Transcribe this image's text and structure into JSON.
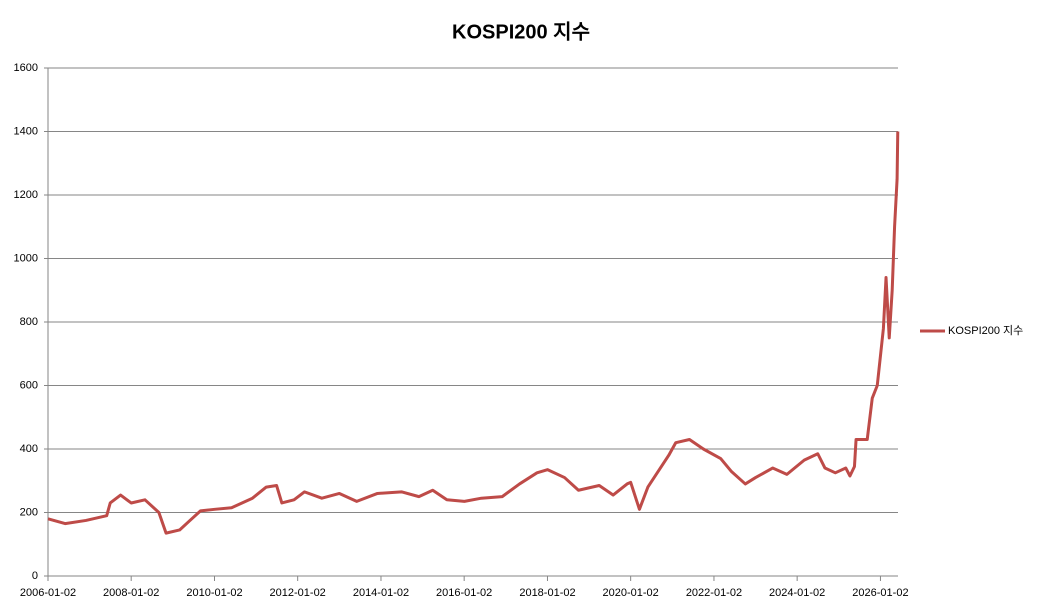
{
  "chart_data": {
    "type": "line",
    "title": "KOSPI200 지수",
    "x": [
      "2006-01-02",
      "2006-06-01",
      "2006-12-01",
      "2007-06-01",
      "2007-07-02",
      "2007-10-01",
      "2008-01-02",
      "2008-05-02",
      "2008-09-01",
      "2008-11-03",
      "2009-03-02",
      "2009-06-01",
      "2009-09-01",
      "2010-01-04",
      "2010-06-01",
      "2010-12-01",
      "2011-04-01",
      "2011-07-01",
      "2011-08-16",
      "2011-12-01",
      "2012-03-02",
      "2012-08-01",
      "2013-01-02",
      "2013-06-03",
      "2013-12-02",
      "2014-07-01",
      "2014-12-01",
      "2015-04-01",
      "2015-08-03",
      "2016-01-04",
      "2016-06-01",
      "2016-12-01",
      "2017-05-02",
      "2017-10-02",
      "2018-01-02",
      "2018-06-01",
      "2018-10-01",
      "2019-04-01",
      "2019-08-01",
      "2019-12-02",
      "2020-01-02",
      "2020-03-19",
      "2020-06-01",
      "2020-12-01",
      "2021-02-01",
      "2021-06-01",
      "2021-10-01",
      "2022-03-02",
      "2022-06-02",
      "2022-10-04",
      "2023-01-02",
      "2023-06-01",
      "2023-10-04",
      "2024-03-04",
      "2024-07-01",
      "2024-09-02",
      "2024-12-02",
      "2025-03-04",
      "2025-04-09",
      "2025-05-19",
      "2025-06-02",
      "2025-09-08",
      "2025-10-22",
      "2025-12-05",
      "2026-01-28",
      "2026-02-20",
      "2026-03-20",
      "2026-04-15",
      "2026-05-06",
      "2026-05-28",
      "2026-06-03"
    ],
    "series": [
      {
        "name": "KOSPI200 지수",
        "color": "#be4b48",
        "values": [
          180,
          165,
          175,
          190,
          230,
          255,
          230,
          240,
          200,
          135,
          145,
          175,
          205,
          210,
          215,
          245,
          280,
          285,
          230,
          240,
          265,
          245,
          260,
          235,
          260,
          265,
          250,
          270,
          240,
          235,
          245,
          250,
          290,
          325,
          335,
          310,
          270,
          285,
          255,
          290,
          295,
          210,
          280,
          380,
          420,
          430,
          400,
          370,
          330,
          290,
          310,
          340,
          320,
          365,
          385,
          340,
          325,
          340,
          315,
          345,
          430,
          430,
          560,
          600,
          780,
          940,
          750,
          900,
          1100,
          1250,
          1400
        ]
      }
    ],
    "xlim": [
      "2006-01-02",
      "2026-06-05"
    ],
    "xticks": [
      "2006-01-02",
      "2008-01-02",
      "2010-01-02",
      "2012-01-02",
      "2014-01-02",
      "2016-01-02",
      "2018-01-02",
      "2020-01-02",
      "2022-01-02",
      "2024-01-02",
      "2026-01-02"
    ],
    "ylim": [
      0,
      1600
    ],
    "yticks": [
      0,
      200,
      400,
      600,
      800,
      1000,
      1200,
      1400,
      1600
    ],
    "grid": true,
    "legend": "right"
  }
}
